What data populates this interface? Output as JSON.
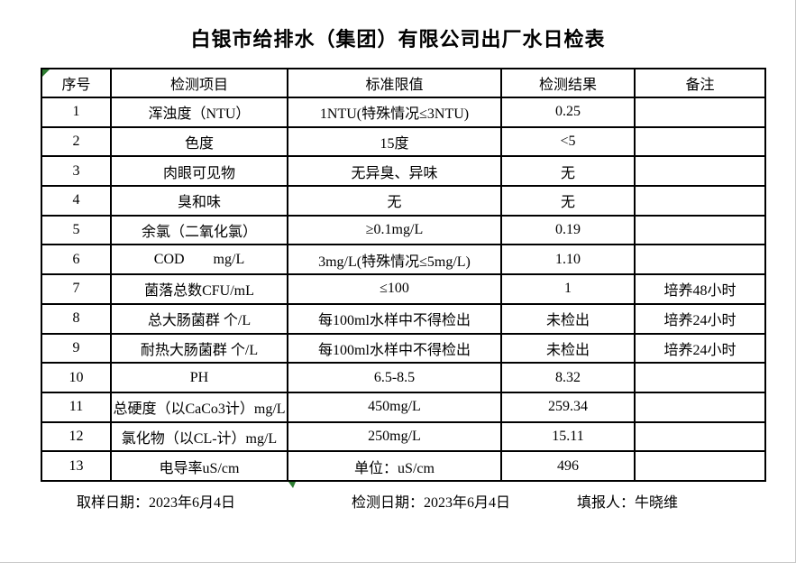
{
  "page": {
    "title": "白银市给排水（集团）有限公司出厂水日检表"
  },
  "colors": {
    "marker_green": "#2e7d32",
    "border_black": "#000000"
  },
  "table": {
    "headers": [
      "序号",
      "检测项目",
      "标准限值",
      "检测结果",
      "备注"
    ],
    "rows": [
      {
        "no": "1",
        "item": "浑浊度（NTU）",
        "limit": "1NTU(特殊情况≤3NTU)",
        "result": "0.25",
        "note": ""
      },
      {
        "no": "2",
        "item": "色度",
        "limit": "15度",
        "result": "<5",
        "note": ""
      },
      {
        "no": "3",
        "item": "肉眼可见物",
        "limit": "无异臭、异味",
        "result": "无",
        "note": ""
      },
      {
        "no": "4",
        "item": "臭和味",
        "limit": "无",
        "result": "无",
        "note": ""
      },
      {
        "no": "5",
        "item": "余氯（二氧化氯）",
        "limit": "≥0.1mg/L",
        "result": "0.19",
        "note": ""
      },
      {
        "no": "6",
        "item": "COD        mg/L",
        "limit": "3mg/L(特殊情况≤5mg/L)",
        "result": "1.10",
        "note": ""
      },
      {
        "no": "7",
        "item": "菌落总数CFU/mL",
        "limit": "≤100",
        "result": "1",
        "note": "培养48小时"
      },
      {
        "no": "8",
        "item": "总大肠菌群 个/L",
        "limit": "每100ml水样中不得检出",
        "result": "未检出",
        "note": "培养24小时"
      },
      {
        "no": "9",
        "item": "耐热大肠菌群 个/L",
        "limit": "每100ml水样中不得检出",
        "result": "未检出",
        "note": "培养24小时"
      },
      {
        "no": "10",
        "item": "PH",
        "limit": "6.5-8.5",
        "result": "8.32",
        "note": ""
      },
      {
        "no": "11",
        "item": "总硬度（以CaCo3计）mg/L",
        "limit": "450mg/L",
        "result": "259.34",
        "note": ""
      },
      {
        "no": "12",
        "item": "氯化物（以CL-计）mg/L",
        "limit": "250mg/L",
        "result": "15.11",
        "note": ""
      },
      {
        "no": "13",
        "item": "电导率uS/cm",
        "limit": "单位：uS/cm",
        "result": "496",
        "note": ""
      }
    ]
  },
  "footer": {
    "sampling_date": "取样日期：2023年6月4日",
    "test_date": "检测日期：2023年6月4日",
    "reporter": "填报人：牛晓维"
  }
}
